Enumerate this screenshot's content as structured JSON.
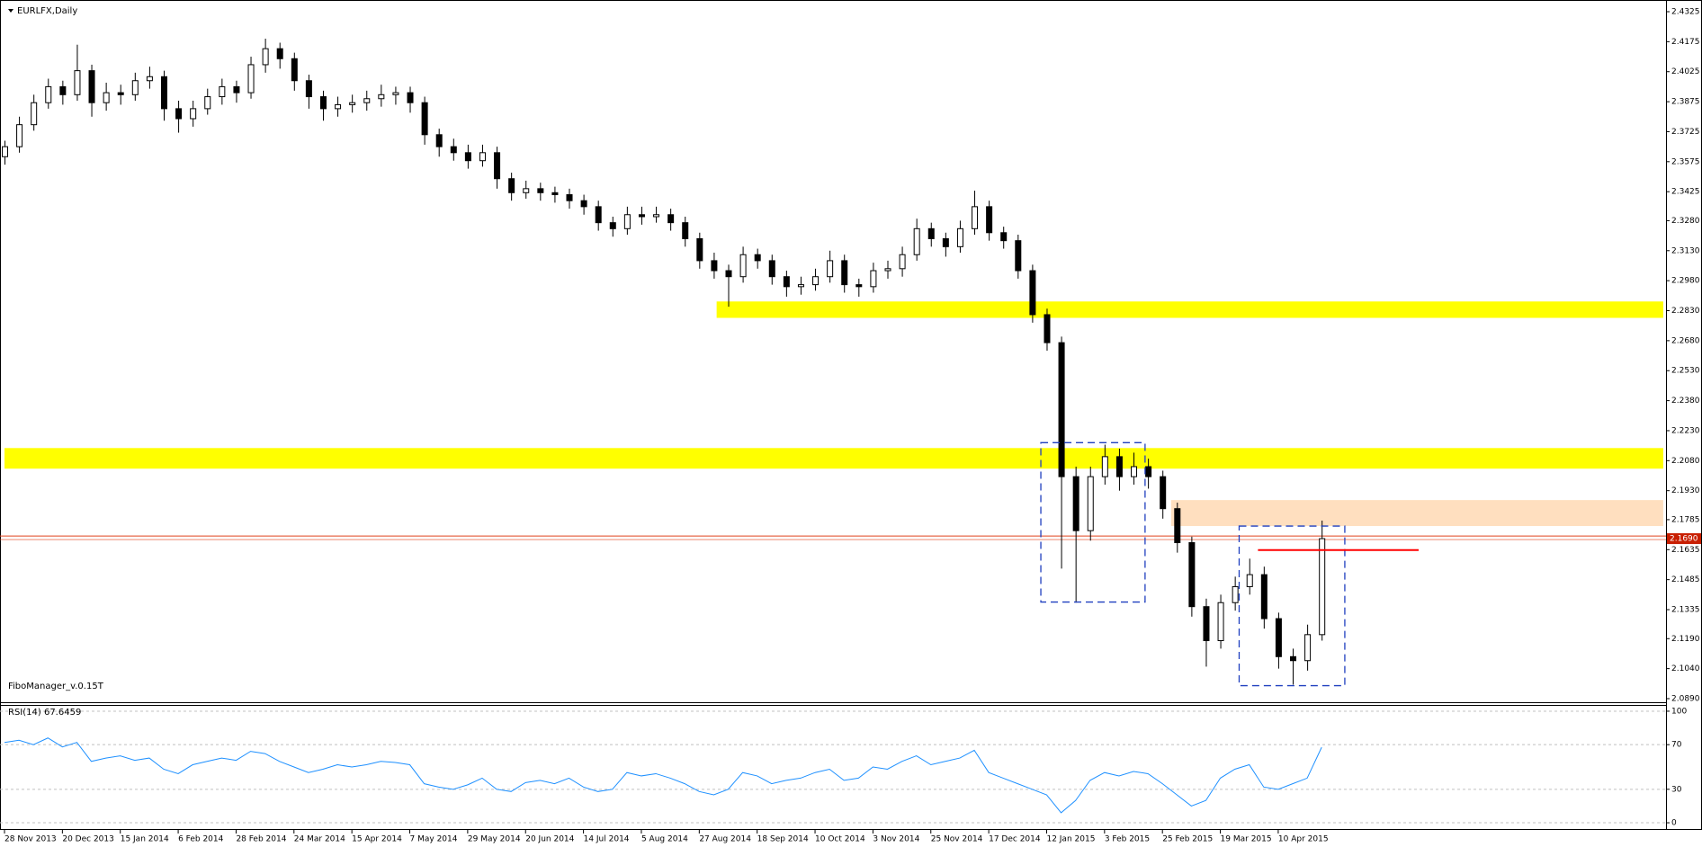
{
  "chart_data": [
    {
      "type": "candlestick",
      "title": "EURLFX,Daily",
      "annotation": "FiboManager_v.0.15T",
      "ylim": [
        2.0872,
        2.437
      ],
      "yticks": [
        2.4325,
        2.4175,
        2.4025,
        2.3875,
        2.3725,
        2.3575,
        2.3425,
        {
          "value": 2.328,
          "label": "2.3280"
        },
        {
          "value": 2.313,
          "label": "2.3130"
        },
        {
          "value": 2.298,
          "label": "2.2980"
        },
        {
          "value": 2.283,
          "label": "2.2830"
        },
        {
          "value": 2.268,
          "label": "2.2680"
        },
        {
          "value": 2.253,
          "label": "2.2530"
        },
        {
          "value": 2.238,
          "label": "2.2380"
        },
        {
          "value": 2.223,
          "label": "2.2230"
        },
        {
          "value": 2.208,
          "label": "2.2080"
        },
        {
          "value": 2.193,
          "label": "2.1930"
        },
        2.1785,
        2.1635,
        2.1485,
        2.1335,
        {
          "value": 2.119,
          "label": "2.1190"
        },
        {
          "value": 2.104,
          "label": "2.1040"
        },
        {
          "value": 2.089,
          "label": "2.0890"
        }
      ],
      "x_labels": [
        "28 Nov 2013",
        "20 Dec 2013",
        "15 Jan 2014",
        "6 Feb 2014",
        "28 Feb 2014",
        "24 Mar 2014",
        "15 Apr 2014",
        "7 May 2014",
        "29 May 2014",
        "20 Jun 2014",
        "14 Jul 2014",
        "5 Aug 2014",
        "27 Aug 2014",
        "18 Sep 2014",
        "10 Oct 2014",
        "3 Nov 2014",
        "25 Nov 2014",
        "17 Dec 2014",
        "12 Jan 2015",
        "3 Feb 2015",
        "25 Feb 2015",
        "19 Mar 2015",
        "10 Apr 2015"
      ],
      "current_price": {
        "value": 2.169,
        "label": "2.1690"
      },
      "candles": [
        [
          2.36,
          2.368,
          2.356,
          2.365
        ],
        [
          2.365,
          2.38,
          2.362,
          2.376
        ],
        [
          2.376,
          2.391,
          2.373,
          2.387
        ],
        [
          2.387,
          2.399,
          2.384,
          2.395
        ],
        [
          2.395,
          2.398,
          2.386,
          2.391
        ],
        [
          2.391,
          2.416,
          2.388,
          2.403
        ],
        [
          2.403,
          2.406,
          2.38,
          2.387
        ],
        [
          2.387,
          2.397,
          2.383,
          2.392
        ],
        [
          2.392,
          2.396,
          2.386,
          2.391
        ],
        [
          2.391,
          2.402,
          2.388,
          2.398
        ],
        [
          2.398,
          2.405,
          2.394,
          2.4
        ],
        [
          2.4,
          2.403,
          2.378,
          2.384
        ],
        [
          2.384,
          2.388,
          2.372,
          2.379
        ],
        [
          2.379,
          2.388,
          2.375,
          2.384
        ],
        [
          2.384,
          2.394,
          2.381,
          2.39
        ],
        [
          2.39,
          2.399,
          2.386,
          2.395
        ],
        [
          2.395,
          2.398,
          2.387,
          2.392
        ],
        [
          2.392,
          2.41,
          2.389,
          2.406
        ],
        [
          2.406,
          2.419,
          2.402,
          2.414
        ],
        [
          2.414,
          2.417,
          2.404,
          2.409
        ],
        [
          2.409,
          2.412,
          2.393,
          2.398
        ],
        [
          2.398,
          2.401,
          2.384,
          2.39
        ],
        [
          2.39,
          2.393,
          2.378,
          2.384
        ],
        [
          2.384,
          2.39,
          2.38,
          2.386
        ],
        [
          2.386,
          2.391,
          2.382,
          2.387
        ],
        [
          2.387,
          2.393,
          2.383,
          2.389
        ],
        [
          2.389,
          2.396,
          2.385,
          2.391
        ],
        [
          2.391,
          2.395,
          2.386,
          2.392
        ],
        [
          2.392,
          2.395,
          2.382,
          2.387
        ],
        [
          2.387,
          2.39,
          2.366,
          2.371
        ],
        [
          2.371,
          2.374,
          2.36,
          2.365
        ],
        [
          2.365,
          2.369,
          2.358,
          2.362
        ],
        [
          2.362,
          2.366,
          2.354,
          2.358
        ],
        [
          2.358,
          2.366,
          2.355,
          2.362
        ],
        [
          2.362,
          2.365,
          2.344,
          2.349
        ],
        [
          2.349,
          2.352,
          2.338,
          2.342
        ],
        [
          2.342,
          2.348,
          2.339,
          2.344
        ],
        [
          2.344,
          2.347,
          2.338,
          2.342
        ],
        [
          2.342,
          2.345,
          2.337,
          2.341
        ],
        [
          2.341,
          2.344,
          2.334,
          2.338
        ],
        [
          2.338,
          2.341,
          2.331,
          2.335
        ],
        [
          2.335,
          2.338,
          2.323,
          2.327
        ],
        [
          2.327,
          2.33,
          2.32,
          2.324
        ],
        [
          2.324,
          2.335,
          2.321,
          2.331
        ],
        [
          2.331,
          2.335,
          2.326,
          2.33
        ],
        [
          2.33,
          2.335,
          2.327,
          2.331
        ],
        [
          2.331,
          2.334,
          2.323,
          2.327
        ],
        [
          2.327,
          2.33,
          2.315,
          2.319
        ],
        [
          2.319,
          2.322,
          2.304,
          2.308
        ],
        [
          2.308,
          2.312,
          2.299,
          2.303
        ],
        [
          2.303,
          2.306,
          2.285,
          2.3
        ],
        [
          2.3,
          2.315,
          2.297,
          2.311
        ],
        [
          2.311,
          2.314,
          2.304,
          2.308
        ],
        [
          2.308,
          2.311,
          2.296,
          2.3
        ],
        [
          2.3,
          2.303,
          2.29,
          2.295
        ],
        [
          2.295,
          2.3,
          2.291,
          2.296
        ],
        [
          2.296,
          2.304,
          2.293,
          2.3
        ],
        [
          2.3,
          2.313,
          2.297,
          2.308
        ],
        [
          2.308,
          2.311,
          2.292,
          2.296
        ],
        [
          2.296,
          2.299,
          2.29,
          2.295
        ],
        [
          2.295,
          2.307,
          2.292,
          2.303
        ],
        [
          2.303,
          2.308,
          2.299,
          2.304
        ],
        [
          2.304,
          2.315,
          2.3,
          2.311
        ],
        [
          2.311,
          2.329,
          2.308,
          2.324
        ],
        [
          2.324,
          2.327,
          2.315,
          2.319
        ],
        [
          2.319,
          2.322,
          2.31,
          2.315
        ],
        [
          2.315,
          2.328,
          2.312,
          2.324
        ],
        [
          2.324,
          2.343,
          2.321,
          2.335
        ],
        [
          2.335,
          2.338,
          2.318,
          2.322
        ],
        [
          2.322,
          2.325,
          2.314,
          2.318
        ],
        [
          2.318,
          2.321,
          2.299,
          2.303
        ],
        [
          2.303,
          2.306,
          2.277,
          2.281
        ],
        [
          2.281,
          2.284,
          2.263,
          2.267
        ],
        [
          2.267,
          2.27,
          2.154,
          2.2
        ],
        [
          2.2,
          2.205,
          2.137,
          2.173
        ],
        [
          2.173,
          2.205,
          2.168,
          2.2
        ],
        [
          2.2,
          2.216,
          2.196,
          2.21
        ],
        [
          2.21,
          2.214,
          2.193,
          2.2
        ],
        [
          2.2,
          2.212,
          2.196,
          2.205
        ],
        [
          2.205,
          2.209,
          2.194,
          2.2
        ],
        [
          2.2,
          2.203,
          2.179,
          2.184
        ],
        [
          2.184,
          2.187,
          2.162,
          2.167
        ],
        [
          2.167,
          2.17,
          2.13,
          2.135
        ],
        [
          2.135,
          2.139,
          2.105,
          2.118
        ],
        [
          2.118,
          2.141,
          2.114,
          2.137
        ],
        [
          2.137,
          2.15,
          2.133,
          2.145
        ],
        [
          2.145,
          2.159,
          2.141,
          2.151
        ],
        [
          2.151,
          2.155,
          2.124,
          2.129
        ],
        [
          2.129,
          2.132,
          2.104,
          2.11
        ],
        [
          2.11,
          2.114,
          2.096,
          2.108
        ],
        [
          2.108,
          2.126,
          2.103,
          2.121
        ],
        [
          2.121,
          2.178,
          2.118,
          2.169
        ]
      ],
      "zones": [
        {
          "from": 2.2794,
          "to": 2.2876,
          "x": [
            49.2,
            114.6
          ],
          "color": "#ffff00"
        },
        {
          "from": 2.204,
          "to": 2.2143,
          "x": [
            0,
            114.6
          ],
          "color": "#ffff00"
        },
        {
          "from": 2.1753,
          "to": 2.1883,
          "x": [
            80.6,
            114.6
          ],
          "color": "#ffdfbf"
        }
      ],
      "boxes": [
        {
          "from": 2.1373,
          "to": 2.217,
          "x": [
            71.6,
            78.8
          ],
          "color": "#1f3fbf"
        },
        {
          "from": 2.0955,
          "to": 2.1753,
          "x": [
            85.3,
            92.6
          ],
          "color": "#1f3fbf"
        }
      ],
      "lines": [
        {
          "value": 2.1633,
          "x": [
            86.6,
            97.7
          ],
          "color": "#ff0000"
        }
      ]
    },
    {
      "type": "line",
      "title": "RSI(14) 67.6459",
      "ylim": [
        -5.6,
        104.8
      ],
      "yticks": [
        100,
        70,
        30,
        0
      ],
      "color": "#1e90ff",
      "values": [
        72,
        74,
        70,
        76,
        68,
        72,
        55,
        58,
        60,
        56,
        58,
        48,
        44,
        52,
        55,
        58,
        56,
        64,
        62,
        55,
        50,
        45,
        48,
        52,
        50,
        52,
        55,
        54,
        52,
        35,
        32,
        30,
        34,
        40,
        30,
        28,
        36,
        38,
        35,
        40,
        32,
        28,
        30,
        45,
        42,
        44,
        40,
        35,
        28,
        25,
        30,
        45,
        42,
        35,
        38,
        40,
        45,
        48,
        38,
        40,
        50,
        48,
        55,
        60,
        52,
        55,
        58,
        65,
        45,
        40,
        35,
        30,
        25,
        9,
        20,
        38,
        45,
        42,
        46,
        44,
        35,
        25,
        15,
        20,
        40,
        48,
        52,
        32,
        30,
        35,
        40,
        67.6459
      ]
    }
  ]
}
